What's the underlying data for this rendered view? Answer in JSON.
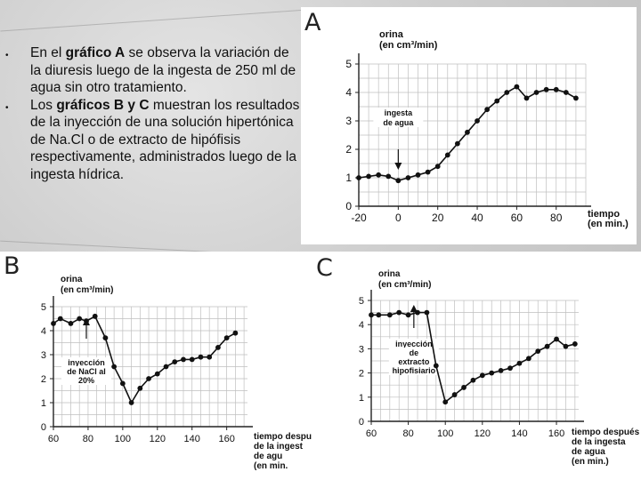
{
  "bullets": [
    {
      "parts": [
        {
          "t": "En el ",
          "b": false
        },
        {
          "t": "gráfico A",
          "b": true
        },
        {
          "t": " se observa la variación de la diuresis luego de la ingesta de 250 ml de agua sin otro tratamiento.",
          "b": false
        }
      ]
    },
    {
      "parts": [
        {
          "t": "Los ",
          "b": false
        },
        {
          "t": "gráficos B y C",
          "b": true
        },
        {
          "t": " muestran los resultados de la inyección de una solución hipertónica de Na.Cl o de extracto de hipófisis respectivamente, administrados luego de la ingesta hídrica.",
          "b": false
        }
      ]
    }
  ],
  "bullet_glyph": "•",
  "chart_data": [
    {
      "id": "A",
      "letter": "A",
      "type": "line",
      "ylabel_lines": [
        "orina",
        "(en cm³/min)"
      ],
      "xlabel_lines": [
        "tiempo",
        "(en min.)"
      ],
      "xlim": [
        -20,
        95
      ],
      "ylim": [
        0,
        5
      ],
      "xticks": [
        -20,
        0,
        20,
        40,
        60,
        80
      ],
      "yticks": [
        0,
        1,
        2,
        3,
        4,
        5
      ],
      "grid": true,
      "annotation": {
        "lines": [
          "ingesta",
          "de agua"
        ],
        "x": 0
      },
      "x": [
        -20,
        -15,
        -10,
        -5,
        0,
        5,
        10,
        15,
        20,
        25,
        30,
        35,
        40,
        45,
        50,
        55,
        60,
        65,
        70,
        75,
        80,
        85,
        90
      ],
      "y": [
        1.0,
        1.05,
        1.1,
        1.05,
        0.9,
        1.0,
        1.1,
        1.2,
        1.4,
        1.8,
        2.2,
        2.6,
        3.0,
        3.4,
        3.7,
        4.0,
        4.2,
        3.8,
        4.0,
        4.1,
        4.1,
        4.0,
        3.8
      ]
    },
    {
      "id": "B",
      "letter": "B",
      "type": "line",
      "ylabel_lines": [
        "orina",
        "(en cm³/min)"
      ],
      "xlabel_lines": [
        "tiempo despué",
        "de la ingest",
        "de agu",
        "(en min."
      ],
      "xlim": [
        60,
        172
      ],
      "ylim": [
        0,
        5
      ],
      "xticks": [
        60,
        80,
        100,
        120,
        140,
        160
      ],
      "yticks": [
        0,
        1,
        2,
        3,
        4,
        5
      ],
      "grid": true,
      "annotation": {
        "lines": [
          "inyección",
          "de NaCl al",
          "20%"
        ],
        "x": 79
      },
      "x": [
        60,
        64,
        70,
        75,
        79,
        84,
        90,
        95,
        100,
        105,
        110,
        115,
        120,
        125,
        130,
        135,
        140,
        145,
        150,
        155,
        160,
        165
      ],
      "y": [
        4.3,
        4.5,
        4.3,
        4.5,
        4.4,
        4.6,
        3.7,
        2.5,
        1.8,
        1.0,
        1.6,
        2.0,
        2.2,
        2.5,
        2.7,
        2.8,
        2.8,
        2.9,
        2.9,
        3.3,
        3.7,
        3.9
      ]
    },
    {
      "id": "C",
      "letter": "C",
      "type": "line",
      "ylabel_lines": [
        "orina",
        "(en cm³/min)"
      ],
      "xlabel_lines": [
        "tiempo después",
        "de la ingesta",
        "de agua",
        "(en min.)"
      ],
      "xlim": [
        60,
        172
      ],
      "ylim": [
        0,
        5
      ],
      "xticks": [
        60,
        80,
        100,
        120,
        140,
        160
      ],
      "yticks": [
        0,
        1,
        2,
        3,
        4,
        5
      ],
      "grid": true,
      "annotation": {
        "lines": [
          "inyección",
          "de",
          "extracto",
          "hipofisiario"
        ],
        "x": 83
      },
      "x": [
        60,
        64,
        70,
        75,
        80,
        85,
        90,
        95,
        100,
        105,
        110,
        115,
        120,
        125,
        130,
        135,
        140,
        145,
        150,
        155,
        160,
        165,
        170
      ],
      "y": [
        4.4,
        4.4,
        4.4,
        4.5,
        4.4,
        4.5,
        4.5,
        2.3,
        0.8,
        1.1,
        1.4,
        1.7,
        1.9,
        2.0,
        2.1,
        2.2,
        2.4,
        2.6,
        2.9,
        3.1,
        3.4,
        3.1,
        3.2
      ]
    }
  ]
}
